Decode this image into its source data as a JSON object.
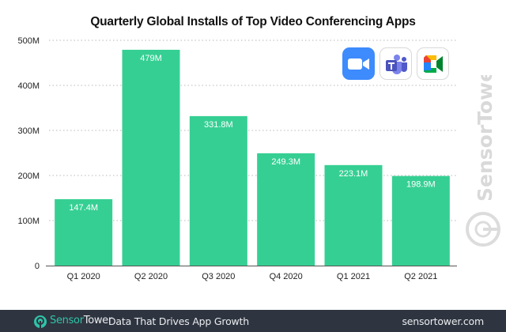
{
  "chart_data": {
    "type": "bar",
    "title": "Quarterly Global Installs of Top Video Conferencing Apps",
    "xlabel": "",
    "ylabel": "",
    "categories": [
      "Q1 2020",
      "Q2 2020",
      "Q3 2020",
      "Q4 2020",
      "Q1 2021",
      "Q2 2021"
    ],
    "values": [
      147.4,
      479,
      331.8,
      249.3,
      223.1,
      198.9
    ],
    "value_units": "millions of installs",
    "data_labels": [
      "147.4M",
      "479M",
      "331.8M",
      "249.3M",
      "223.1M",
      "198.9M"
    ],
    "ylim": [
      0,
      500
    ],
    "yticks": [
      0,
      100,
      200,
      300,
      400,
      500
    ],
    "ytick_labels": [
      "0",
      "100M",
      "200M",
      "300M",
      "400M",
      "500M"
    ],
    "grid": true,
    "grid_style": "dotted",
    "bar_color": "#36cf93",
    "legend": null
  },
  "app_icons": [
    {
      "name": "Zoom",
      "icon": "zoom-icon",
      "color": "#3d8bfd"
    },
    {
      "name": "Microsoft Teams",
      "icon": "teams-icon",
      "color": "#5b5fc7"
    },
    {
      "name": "Google Meet",
      "icon": "google-meet-icon",
      "color": "#00ac47"
    }
  ],
  "watermark": {
    "text": "SensorTower",
    "color": "#d9d9d9"
  },
  "footer": {
    "brand_part1": "Sensor",
    "brand_part2": "Tower",
    "tagline": "Data That Drives App Growth",
    "url": "sensortower.com",
    "background": "#2f3540",
    "brand_color": "#2ec4a9"
  }
}
